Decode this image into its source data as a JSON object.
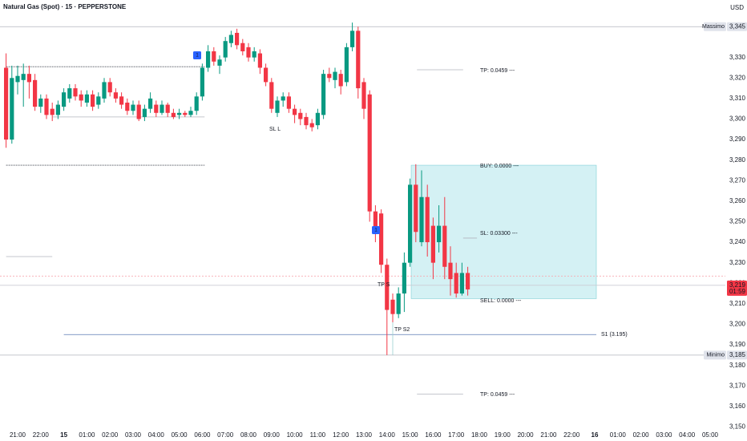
{
  "chart_data": {
    "type": "candlestick",
    "title": "Natural Gas (Spot) · 15 · PEPPERSTONE",
    "currency": "USD",
    "up_color": "#089981",
    "down_color": "#f23645",
    "grid": false,
    "x": [
      -0.5,
      -0.25,
      0,
      0.25,
      0.5,
      0.75,
      1,
      1.25,
      1.5,
      1.75,
      2,
      2.25,
      2.5,
      2.75,
      3,
      3.25,
      3.5,
      3.75,
      4,
      4.25,
      4.5,
      4.75,
      5,
      5.25,
      5.5,
      5.75,
      6,
      6.25,
      6.5,
      6.75,
      7,
      7.25,
      7.5,
      7.75,
      8,
      8.25,
      8.5,
      8.75,
      9,
      9.25,
      9.5,
      9.75,
      10,
      10.25,
      10.5,
      10.75,
      11,
      11.25,
      11.5,
      11.75,
      12,
      12.25,
      12.5,
      12.75,
      13,
      13.25,
      13.5,
      13.75,
      14,
      14.25,
      14.5,
      14.75,
      15,
      15.25,
      15.5,
      15.75,
      16,
      16.25,
      16.5,
      16.75,
      17,
      17.25,
      17.5,
      17.75,
      18,
      18.25,
      18.5,
      18.75,
      19,
      19.25,
      19.5
    ],
    "open": [
      3325,
      3290,
      3318,
      3319,
      3322,
      3319,
      3306,
      3310,
      3305,
      3302,
      3306,
      3310,
      3315,
      3312,
      3308,
      3312,
      3307,
      3310,
      3318,
      3313,
      3311,
      3308,
      3304,
      3307,
      3301,
      3305,
      3307,
      3303,
      3307,
      3303,
      3302,
      3303,
      3302,
      3304,
      3311,
      3325,
      3333,
      3326,
      3330,
      3337,
      3342,
      3337,
      3335,
      3330,
      3332,
      3325,
      3318,
      3303,
      3309,
      3311,
      3305,
      3303,
      3301,
      3298,
      3297,
      3302,
      3322,
      3319,
      3322,
      3318,
      3335,
      3343,
      3318,
      3312,
      3255,
      3254,
      3229,
      3212,
      3205,
      3215,
      3230,
      3268,
      3240,
      3262,
      3248,
      3240,
      3248,
      3230,
      3225,
      3215,
      3225
    ],
    "high": [
      3332,
      3326,
      3326,
      3327,
      3326,
      3322,
      3312,
      3312,
      3308,
      3309,
      3315,
      3317,
      3317,
      3314,
      3314,
      3314,
      3313,
      3320,
      3320,
      3315,
      3313,
      3310,
      3309,
      3309,
      3307,
      3313,
      3309,
      3309,
      3308,
      3305,
      3305,
      3304,
      3306,
      3313,
      3327,
      3336,
      3335,
      3331,
      3340,
      3343,
      3344,
      3339,
      3337,
      3335,
      3334,
      3327,
      3320,
      3311,
      3313,
      3313,
      3307,
      3305,
      3303,
      3300,
      3305,
      3324,
      3325,
      3325,
      3324,
      3337,
      3347,
      3345,
      3320,
      3314,
      3258,
      3256,
      3232,
      3215,
      3218,
      3235,
      3271,
      3278,
      3275,
      3268,
      3252,
      3258,
      3262,
      3238,
      3230,
      3230,
      3228
    ],
    "low": [
      3286,
      3288,
      3312,
      3306,
      3310,
      3304,
      3303,
      3300,
      3299,
      3300,
      3304,
      3308,
      3309,
      3306,
      3306,
      3304,
      3305,
      3308,
      3311,
      3308,
      3305,
      3302,
      3302,
      3299,
      3299,
      3303,
      3301,
      3302,
      3301,
      3300,
      3300,
      3301,
      3301,
      3302,
      3309,
      3323,
      3326,
      3322,
      3328,
      3335,
      3334,
      3331,
      3328,
      3328,
      3322,
      3316,
      3303,
      3301,
      3306,
      3303,
      3298,
      3297,
      3295,
      3294,
      3295,
      3300,
      3318,
      3315,
      3312,
      3316,
      3333,
      3310,
      3300,
      3250,
      3240,
      3225,
      3185,
      3201,
      3203,
      3206,
      3228,
      3240,
      3238,
      3233,
      3222,
      3235,
      3222,
      3214,
      3213,
      3214,
      3214
    ],
    "close": [
      3290,
      3320,
      3321,
      3322,
      3318,
      3306,
      3310,
      3302,
      3302,
      3307,
      3313,
      3315,
      3311,
      3309,
      3312,
      3306,
      3311,
      3318,
      3313,
      3310,
      3307,
      3304,
      3307,
      3300,
      3305,
      3310,
      3303,
      3307,
      3303,
      3301,
      3303,
      3302,
      3304,
      3311,
      3325,
      3333,
      3328,
      3329,
      3338,
      3341,
      3336,
      3333,
      3330,
      3333,
      3325,
      3318,
      3305,
      3309,
      3311,
      3305,
      3302,
      3300,
      3297,
      3296,
      3303,
      3322,
      3320,
      3323,
      3316,
      3335,
      3343,
      3315,
      3305,
      3255,
      3247,
      3229,
      3207,
      3205,
      3215,
      3230,
      3268,
      3245,
      3262,
      3240,
      3230,
      3248,
      3228,
      3222,
      3215,
      3225,
      3217
    ],
    "xlim": [
      -0.764,
      30.66
    ],
    "xticks": [
      {
        "value": 0,
        "label": "21:00"
      },
      {
        "value": 1,
        "label": "22:00"
      },
      {
        "value": 2,
        "label": "15"
      },
      {
        "value": 3,
        "label": "01:00"
      },
      {
        "value": 4,
        "label": "02:00"
      },
      {
        "value": 5,
        "label": "03:00"
      },
      {
        "value": 6,
        "label": "04:00"
      },
      {
        "value": 7,
        "label": "05:00"
      },
      {
        "value": 8,
        "label": "06:00"
      },
      {
        "value": 9,
        "label": "07:00"
      },
      {
        "value": 10,
        "label": "08:00"
      },
      {
        "value": 11,
        "label": "09:00"
      },
      {
        "value": 12,
        "label": "10:00"
      },
      {
        "value": 13,
        "label": "11:00"
      },
      {
        "value": 14,
        "label": "12:00"
      },
      {
        "value": 15,
        "label": "13:00"
      },
      {
        "value": 16,
        "label": "14:00"
      },
      {
        "value": 17,
        "label": "15:00"
      },
      {
        "value": 18,
        "label": "16:00"
      },
      {
        "value": 19,
        "label": "17:00"
      },
      {
        "value": 20,
        "label": "18:00"
      },
      {
        "value": 21,
        "label": "19:00"
      },
      {
        "value": 22,
        "label": "20:00"
      },
      {
        "value": 23,
        "label": "21:00"
      },
      {
        "value": 24,
        "label": "22:00"
      },
      {
        "value": 25,
        "label": "16"
      },
      {
        "value": 26,
        "label": "01:00"
      },
      {
        "value": 27,
        "label": "02:00"
      },
      {
        "value": 28,
        "label": "03:00"
      },
      {
        "value": 29,
        "label": "04:00"
      },
      {
        "value": 30,
        "label": "05:00"
      }
    ],
    "ylim": [
      3149,
      3358
    ],
    "yticks": [
      {
        "value": 3150,
        "label": "3,150"
      },
      {
        "value": 3160,
        "label": "3,160"
      },
      {
        "value": 3170,
        "label": "3,170"
      },
      {
        "value": 3180,
        "label": "3,180"
      },
      {
        "value": 3190,
        "label": "3,190"
      },
      {
        "value": 3200,
        "label": "3,200"
      },
      {
        "value": 3210,
        "label": "3,210"
      },
      {
        "value": 3220,
        "label": "3,220"
      },
      {
        "value": 3230,
        "label": "3,230"
      },
      {
        "value": 3240,
        "label": "3,240"
      },
      {
        "value": 3250,
        "label": "3,250"
      },
      {
        "value": 3260,
        "label": "3,260"
      },
      {
        "value": 3270,
        "label": "3,270"
      },
      {
        "value": 3280,
        "label": "3,280"
      },
      {
        "value": 3290,
        "label": "3,290"
      },
      {
        "value": 3300,
        "label": "3,300"
      },
      {
        "value": 3310,
        "label": "3,310"
      },
      {
        "value": 3320,
        "label": "3,320"
      },
      {
        "value": 3330,
        "label": "3,330"
      }
    ],
    "price_labels": [
      {
        "value": 3345,
        "label": "3,345",
        "name": "Massimo",
        "color": "#e0e3eb",
        "text_color": "#131722"
      },
      {
        "value": 3185,
        "label": "3,185",
        "name": "Minimo",
        "color": "#e0e3eb",
        "text_color": "#131722"
      },
      {
        "value": 3219,
        "label": "3,219",
        "name": "01:59",
        "color": "#f23645",
        "text_color": "#ffffff"
      }
    ],
    "levels": [
      {
        "value": 3345,
        "from": -0.764,
        "to": 30.66,
        "color": "#b2b5be",
        "dash": "none"
      },
      {
        "value": 3185,
        "from": -0.764,
        "to": 30.66,
        "color": "#b2b5be",
        "dash": "none"
      },
      {
        "value": 3223.5,
        "from": -0.764,
        "to": 30.66,
        "color": "#f7a9b0",
        "dash": "2 2"
      },
      {
        "value": 3219,
        "from": -0.764,
        "to": 30.66,
        "color": "#c9ccd4",
        "dash": "none"
      },
      {
        "value": 3325.5,
        "from": -0.5,
        "to": 8.1,
        "color": "#5d606b",
        "dash": "2 1"
      },
      {
        "value": 3277.5,
        "from": -0.5,
        "to": 8.1,
        "color": "#5d606b",
        "dash": "2 1"
      },
      {
        "value": 3301,
        "from": 1.5,
        "to": 8.1,
        "color": "#b2b5be",
        "dash": "none"
      },
      {
        "value": 3233,
        "from": -0.5,
        "to": 1.5,
        "color": "#b2b5be",
        "dash": "none"
      },
      {
        "value": 3195,
        "from": 2.0,
        "to": 25.07,
        "color": "#5b7bb5",
        "dash": "none"
      },
      {
        "value": 3324,
        "from": 17.3,
        "to": 19.3,
        "color": "#b2b5be",
        "dash": "none"
      },
      {
        "value": 3166,
        "from": 17.3,
        "to": 19.3,
        "color": "#b2b5be",
        "dash": "none"
      },
      {
        "value": 3242,
        "from": 19.3,
        "to": 19.9,
        "color": "#b2b5be",
        "dash": "none"
      },
      {
        "value": 3185,
        "from": 16.25,
        "to": 16.25,
        "color": "#9ad0cf",
        "dash": "none"
      }
    ],
    "position_box": {
      "top": 3277.5,
      "bottom": 3212.5,
      "from": 17.05,
      "to": 25.07,
      "color": "#cdeff2",
      "border": "#7fd0d6"
    },
    "annotations": [
      "TP: 0.0459 ---",
      "BUY: 0.0000 ---",
      "SL: 0.03300 ---",
      "SELL: 0.0000 ---",
      "TP: 0.0459 ---",
      "SL L",
      "TP S",
      "TP S2",
      "S1 (3.195)"
    ],
    "markers": [
      "1",
      "1"
    ]
  }
}
